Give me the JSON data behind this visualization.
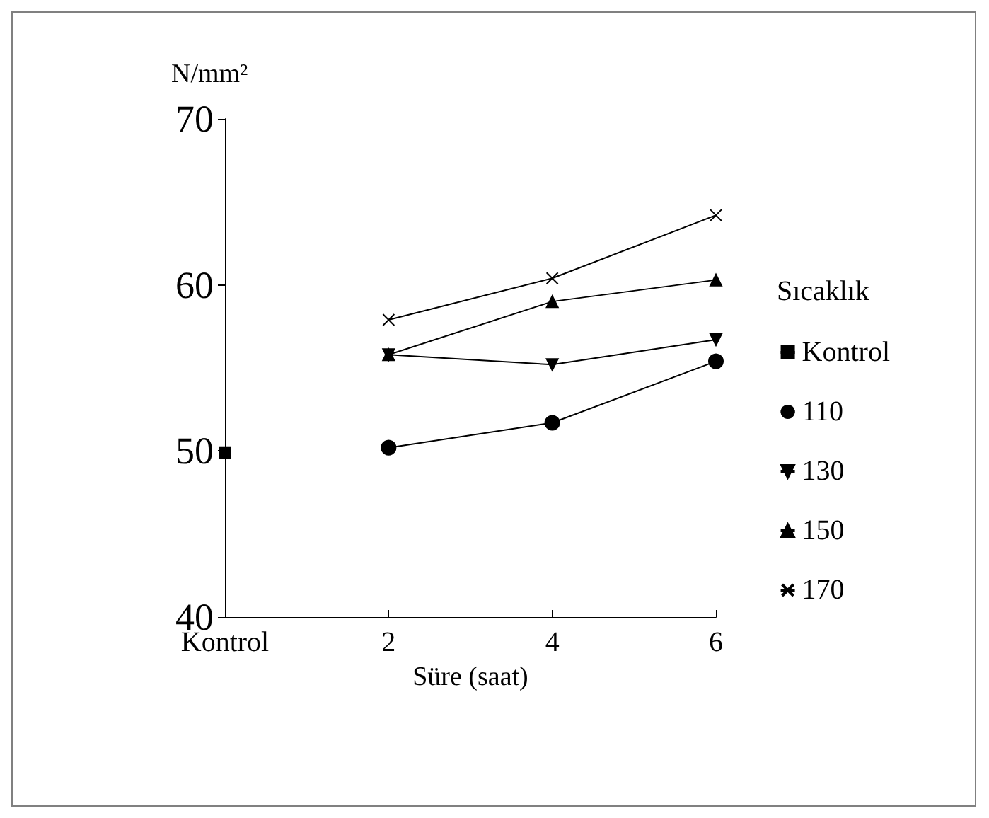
{
  "chart_data": {
    "type": "line",
    "ylabel": "N/mm²",
    "xlabel": "Süre (saat)",
    "legend_title": "Sıcaklık",
    "categories": [
      "Kontrol",
      "2",
      "4",
      "6"
    ],
    "series": [
      {
        "name": "Kontrol",
        "color": "#000000",
        "marker": "square",
        "values": [
          49.9,
          null,
          null,
          null
        ]
      },
      {
        "name": "110",
        "color": "#000000",
        "marker": "circle",
        "values": [
          null,
          50.2,
          51.7,
          55.4
        ]
      },
      {
        "name": "130",
        "color": "#000000",
        "marker": "triangle",
        "values": [
          null,
          55.8,
          55.2,
          56.7
        ]
      },
      {
        "name": "150",
        "color": "#000000",
        "marker": "triangle",
        "values": [
          null,
          55.8,
          59.0,
          60.3
        ]
      },
      {
        "name": "170",
        "color": "#000000",
        "marker": "cross",
        "values": [
          null,
          57.9,
          60.4,
          64.2
        ]
      }
    ],
    "ylim": [
      40,
      70
    ],
    "yticks": [
      40,
      50,
      60,
      70
    ],
    "grid": false,
    "legend": "right",
    "line_style": "solid"
  }
}
